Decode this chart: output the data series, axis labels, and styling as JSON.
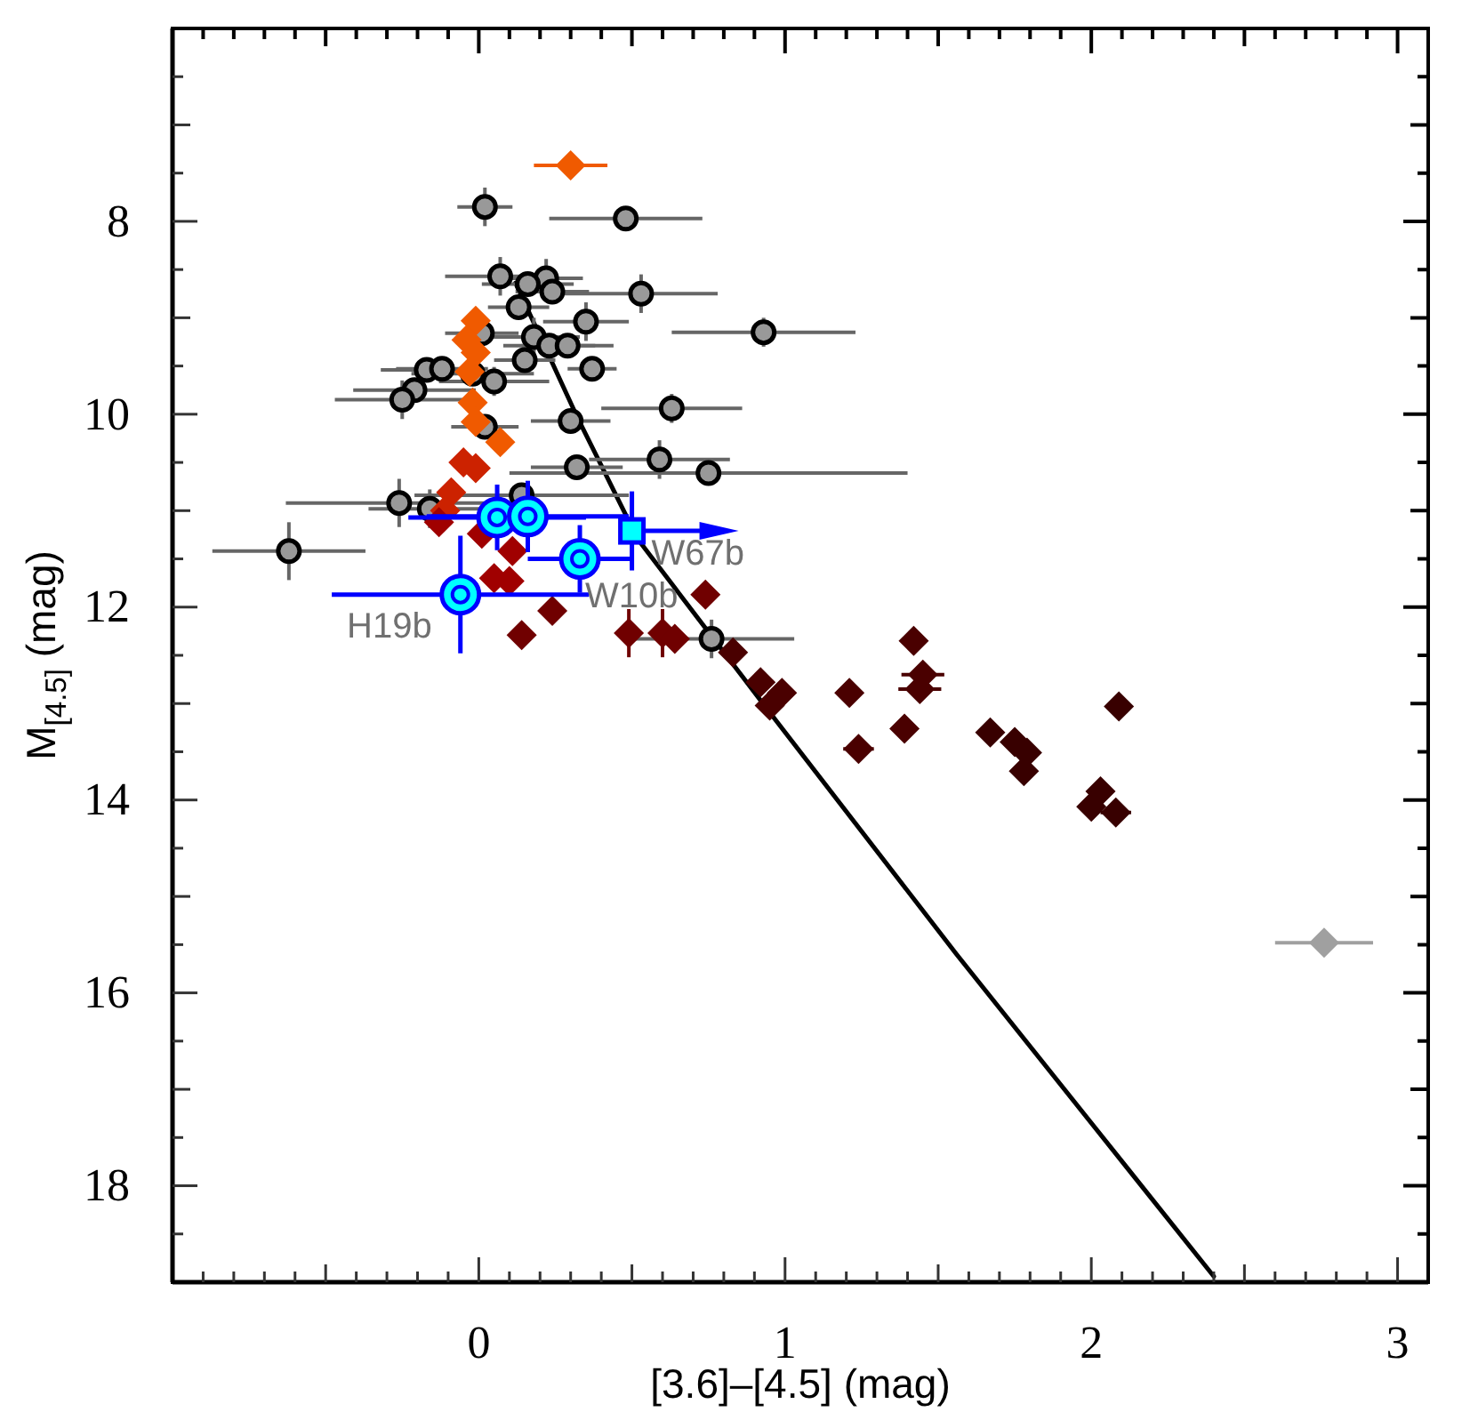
{
  "chart_data": {
    "type": "scatter",
    "xlabel": "[3.6]–[4.5] (mag)",
    "ylabel": "M$_{[4.5]}$ (mag)",
    "xlim": [
      -1,
      3.1
    ],
    "ylim": [
      19,
      6
    ],
    "xticks": [
      {
        "value": -0.9,
        "label": null
      },
      {
        "value": -0.8,
        "label": null
      },
      {
        "value": -0.7,
        "label": null
      },
      {
        "value": -0.6,
        "label": null
      },
      {
        "value": -0.5,
        "label": null
      },
      {
        "value": -0.4,
        "label": null
      },
      {
        "value": -0.3,
        "label": null
      },
      {
        "value": -0.2,
        "label": null
      },
      {
        "value": -0.1,
        "label": null
      },
      0,
      {
        "value": 0.1,
        "label": null
      },
      {
        "value": 0.2,
        "label": null
      },
      {
        "value": 0.3,
        "label": null
      },
      {
        "value": 0.4,
        "label": null
      },
      {
        "value": 0.5,
        "label": null
      },
      {
        "value": 0.6,
        "label": null
      },
      {
        "value": 0.7,
        "label": null
      },
      {
        "value": 0.8,
        "label": null
      },
      {
        "value": 0.9,
        "label": null
      },
      1,
      {
        "value": 1.1,
        "label": null
      },
      {
        "value": 1.2,
        "label": null
      },
      {
        "value": 1.3,
        "label": null
      },
      {
        "value": 1.4,
        "label": null
      },
      {
        "value": 1.5,
        "label": null
      },
      {
        "value": 1.6,
        "label": null
      },
      {
        "value": 1.7,
        "label": null
      },
      {
        "value": 1.8,
        "label": null
      },
      {
        "value": 1.9,
        "label": null
      },
      2,
      {
        "value": 2.1,
        "label": null
      },
      {
        "value": 2.2,
        "label": null
      },
      {
        "value": 2.3,
        "label": null
      },
      {
        "value": 2.4,
        "label": null
      },
      {
        "value": 2.5,
        "label": null
      },
      {
        "value": 2.6,
        "label": null
      },
      {
        "value": 2.7,
        "label": null
      },
      {
        "value": 2.8,
        "label": null
      },
      {
        "value": 2.9,
        "label": null
      },
      3
    ],
    "yticks": [
      {
        "value": 6.5,
        "label": null
      },
      {
        "value": 7,
        "label": null
      },
      {
        "value": 7.5,
        "label": null
      },
      8,
      {
        "value": 8.5,
        "label": null
      },
      {
        "value": 9,
        "label": null
      },
      {
        "value": 9.5,
        "label": null
      },
      10,
      {
        "value": 10.5,
        "label": null
      },
      {
        "value": 11,
        "label": null
      },
      {
        "value": 11.5,
        "label": null
      },
      12,
      {
        "value": 12.5,
        "label": null
      },
      {
        "value": 13,
        "label": null
      },
      {
        "value": 13.5,
        "label": null
      },
      14,
      {
        "value": 14.5,
        "label": null
      },
      {
        "value": 15,
        "label": null
      },
      {
        "value": 15.5,
        "label": null
      },
      16,
      {
        "value": 16.5,
        "label": null
      },
      {
        "value": 17,
        "label": null
      },
      {
        "value": 17.5,
        "label": null
      },
      18,
      {
        "value": 18.5,
        "label": null
      }
    ],
    "annotations": [
      {
        "text": "H19b",
        "x": -0.06,
        "y": 11.87
      },
      {
        "text": "W10b",
        "x": 0.33,
        "y": 11.5
      },
      {
        "text": "W67b",
        "x": 0.5,
        "y": 11.21
      }
    ],
    "series": [
      {
        "type": "line",
        "color": "#000000",
        "marker": "none",
        "line_style": "solid",
        "x": [
          0.12,
          0.32,
          0.52,
          0.94,
          1.56,
          2.4
        ],
        "values": [
          8.64,
          10.02,
          11.3,
          13.05,
          15.6,
          18.94
        ]
      },
      {
        "color": "#999999",
        "marker": "circle",
        "x": [
          0.02,
          0.48,
          0.07,
          0.22,
          0.16,
          0.24,
          0.53,
          0.13,
          0.35,
          0.93,
          0.01,
          0.18,
          0.23,
          0.29,
          0.15,
          0.37,
          -0.17,
          -0.12,
          -0.02,
          0.05,
          -0.21,
          -0.25,
          0.63,
          0.3,
          0.02,
          0.59,
          0.32,
          0.75,
          -0.26,
          -0.16,
          0.14,
          -0.62,
          0.76
        ],
        "values": [
          7.85,
          7.97,
          8.57,
          8.59,
          8.65,
          8.73,
          8.75,
          8.89,
          9.04,
          9.15,
          9.16,
          9.2,
          9.29,
          9.29,
          9.44,
          9.53,
          9.54,
          9.53,
          9.58,
          9.66,
          9.75,
          9.85,
          9.94,
          10.07,
          10.13,
          10.47,
          10.55,
          10.61,
          10.92,
          10.98,
          10.84,
          11.42,
          12.33
        ],
        "xerrors": [
          0.09,
          0.25,
          0.18,
          0.12,
          0.15,
          0.12,
          0.25,
          0.1,
          0.14,
          0.3,
          0.12,
          0.15,
          0.15,
          0.15,
          0.1,
          0.08,
          0.15,
          0.15,
          0.2,
          0.18,
          0.2,
          0.22,
          0.23,
          0.13,
          0.11,
          0.23,
          0.15,
          0.65,
          0.37,
          0.2,
          0.35,
          0.25,
          0.27
        ],
        "errors": [
          0.2,
          null,
          0.2,
          0.2,
          null,
          null,
          0.2,
          null,
          0.2,
          0.15,
          null,
          0.2,
          null,
          null,
          null,
          null,
          null,
          null,
          null,
          0.15,
          null,
          0.2,
          0.15,
          null,
          null,
          0.2,
          null,
          null,
          0.25,
          0.2,
          null,
          0.3,
          0.2
        ]
      },
      {
        "marker": "diamond",
        "x": [
          0.3,
          -0.01,
          -0.04,
          -0.01,
          -0.03,
          -0.02,
          -0.01,
          0.07,
          -0.05,
          -0.01,
          -0.09,
          -0.11,
          -0.13,
          0.01,
          0.11,
          0.05,
          0.1,
          0.24,
          0.14,
          0.74,
          0.49,
          0.6,
          0.64,
          0.83,
          0.92,
          0.99,
          0.95,
          1.21,
          1.42,
          1.45,
          1.44,
          1.24,
          1.39,
          1.67,
          1.75,
          1.79,
          1.78,
          2.09,
          2.03,
          2,
          2.08,
          2.76
        ],
        "values": [
          7.42,
          9.03,
          9.23,
          9.36,
          9.56,
          9.88,
          10.08,
          10.29,
          10.5,
          10.56,
          10.81,
          11,
          11.12,
          11.24,
          11.42,
          11.7,
          11.73,
          12.04,
          12.29,
          11.87,
          12.27,
          12.27,
          12.33,
          12.47,
          12.78,
          12.89,
          13.02,
          12.89,
          12.35,
          12.7,
          12.85,
          13.47,
          13.26,
          13.3,
          13.4,
          13.51,
          13.7,
          13.03,
          13.91,
          14.07,
          14.13,
          15.48
        ],
        "colors": [
          "#f05a00",
          "#f05a00",
          "#f05a00",
          "#f05a00",
          "#f05a00",
          "#f05a00",
          "#f05a00",
          "#f05a00",
          "#cc2200",
          "#cc2200",
          "#cc2200",
          "#cc2200",
          "#a00000",
          "#a00000",
          "#a00000",
          "#a00000",
          "#a00000",
          "#700000",
          "#700000",
          "#700000",
          "#700000",
          "#700000",
          "#700000",
          "#4a0000",
          "#4a0000",
          "#4a0000",
          "#4a0000",
          "#4a0000",
          "#4a0000",
          "#4a0000",
          "#4a0000",
          "#4a0000",
          "#4a0000",
          "#380000",
          "#380000",
          "#380000",
          "#380000",
          "#380000",
          "#380000",
          "#380000",
          "#380000",
          "#a0a0a0"
        ],
        "xerrors": [
          0.12,
          null,
          null,
          null,
          null,
          null,
          null,
          null,
          null,
          null,
          null,
          null,
          null,
          null,
          null,
          null,
          null,
          null,
          null,
          null,
          null,
          null,
          null,
          null,
          null,
          null,
          null,
          null,
          null,
          0.07,
          0.07,
          0.05,
          null,
          null,
          null,
          null,
          null,
          null,
          null,
          null,
          0.05,
          0.16
        ],
        "errors": [
          null,
          null,
          null,
          null,
          null,
          null,
          null,
          null,
          null,
          null,
          null,
          null,
          null,
          null,
          null,
          null,
          null,
          null,
          null,
          null,
          0.25,
          0.25,
          null,
          null,
          null,
          null,
          null,
          null,
          null,
          null,
          null,
          null,
          null,
          null,
          null,
          null,
          null,
          null,
          null,
          null,
          null,
          null
        ]
      },
      {
        "color": "#00ffff",
        "marker": "circle",
        "x": [
          0.06,
          0.16,
          0.33,
          -0.06
        ],
        "values": [
          11.07,
          11.06,
          11.5,
          11.87
        ],
        "xerrors": [
          0.29,
          0.33,
          0.17,
          0.42
        ],
        "errors": [
          0.34,
          0.37,
          0.35,
          0.61
        ]
      },
      {
        "color": "#00ffff",
        "marker": "square",
        "x": [
          0.5
        ],
        "values": [
          11.21
        ],
        "errors": [
          0.41
        ]
      }
    ]
  }
}
